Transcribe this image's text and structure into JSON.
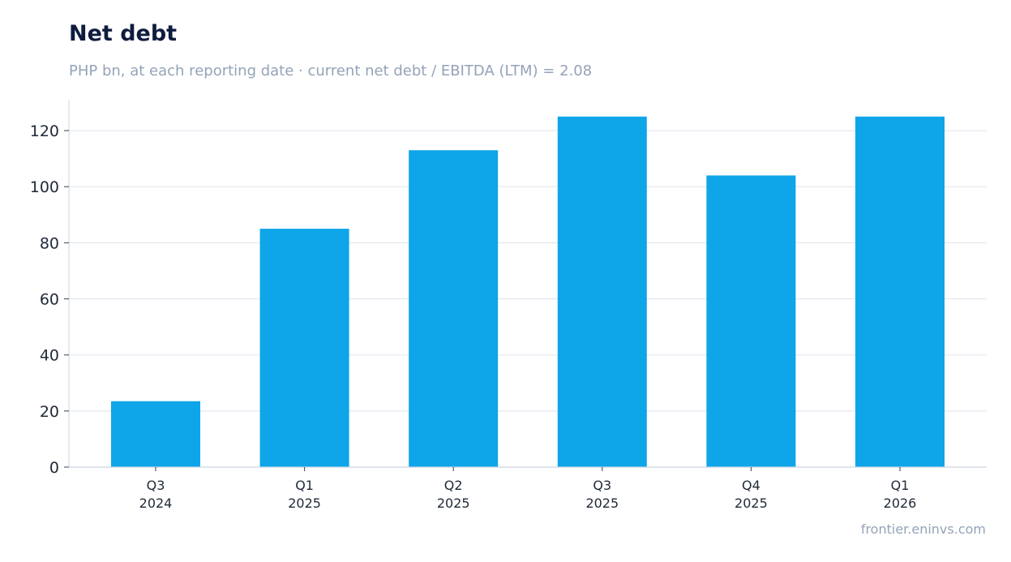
{
  "chart_data": {
    "type": "bar",
    "title": "Net debt",
    "subtitle": "PHP bn, at each reporting date · current net debt / EBITDA (LTM) = 2.08",
    "categories": [
      [
        "Q3",
        "2024"
      ],
      [
        "Q1",
        "2025"
      ],
      [
        "Q2",
        "2025"
      ],
      [
        "Q3",
        "2025"
      ],
      [
        "Q4",
        "2025"
      ],
      [
        "Q1",
        "2026"
      ]
    ],
    "values": [
      23.5,
      85,
      113,
      125,
      104,
      125
    ],
    "ylim": [
      0,
      131
    ],
    "yticks": [
      0,
      20,
      40,
      60,
      80,
      100,
      120
    ],
    "grid": true,
    "bar_color": "#0ea5e9",
    "grid_color": "#e2e8f0",
    "axis_color": "#cbd5e1"
  },
  "source": "frontier.eninvs.com"
}
